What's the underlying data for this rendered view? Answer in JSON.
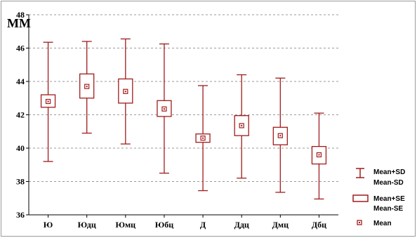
{
  "chart_data": {
    "type": "box",
    "unit_label": "ММ",
    "ylim": [
      36,
      48
    ],
    "y_ticks": [
      36,
      38,
      40,
      42,
      44,
      46,
      48
    ],
    "grid": true,
    "legend_position": "bottom-right",
    "colors": {
      "series": "#a01c1c",
      "grid": "#9a9a9a",
      "axis": "#000000"
    },
    "categories": [
      "Ю",
      "Юдц",
      "Юмц",
      "Юбц",
      "Д",
      "Ддц",
      "Дмц",
      "Дбц"
    ],
    "series": [
      {
        "mean": [
          42.8,
          43.7,
          43.4,
          42.35,
          40.6,
          41.35,
          40.75,
          39.6
        ],
        "se_low": [
          42.45,
          43.0,
          42.7,
          41.9,
          40.35,
          40.75,
          40.2,
          39.05
        ],
        "se_high": [
          43.2,
          44.45,
          44.15,
          42.85,
          40.85,
          41.95,
          41.25,
          40.1
        ],
        "sd_low": [
          39.2,
          40.9,
          40.25,
          38.5,
          37.45,
          38.2,
          37.35,
          36.95
        ],
        "sd_high": [
          46.35,
          46.4,
          46.55,
          46.25,
          43.75,
          44.4,
          44.2,
          42.1
        ]
      }
    ],
    "legend": {
      "sd_line1": "Mean+SD",
      "sd_line2": "Mean-SD",
      "se_line1": "Mean+SE",
      "se_line2": "Mean-SE",
      "mean": "Mean"
    }
  }
}
